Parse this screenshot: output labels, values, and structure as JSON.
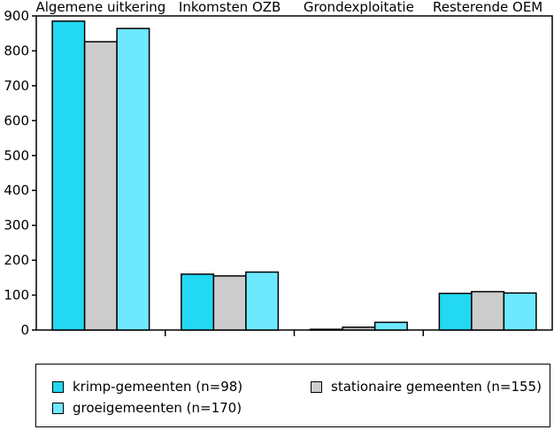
{
  "chart_data": {
    "type": "bar",
    "categories": [
      "Algemene uitkering",
      "Inkomsten OZB",
      "Grondexploitatie",
      "Resterende OEM"
    ],
    "series": [
      {
        "name": "krimp-gemeenten (n=98)",
        "color": "#22d8f2",
        "values": [
          885,
          160,
          2,
          105
        ]
      },
      {
        "name": "stationaire gemeenten (n=155)",
        "color": "#cccccc",
        "values": [
          826,
          155,
          8,
          110
        ]
      },
      {
        "name": "groeigemeenten (n=170)",
        "color": "#6ee8ff",
        "values": [
          864,
          166,
          22,
          106
        ]
      }
    ],
    "yticks": [
      "0",
      "100",
      "200",
      "300",
      "400",
      "500",
      "600",
      "700",
      "800",
      "900"
    ],
    "ylim": [
      0,
      900
    ],
    "grid": false,
    "legend_position": "bottom"
  }
}
